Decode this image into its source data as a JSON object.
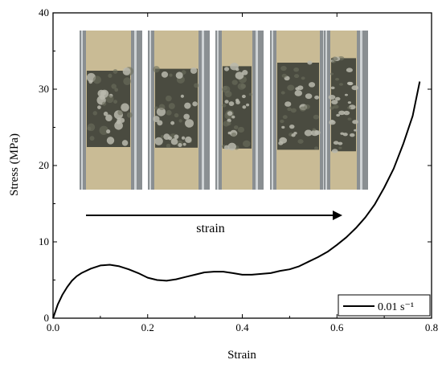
{
  "chart_data": {
    "type": "line",
    "xlabel": "Strain",
    "ylabel": "Stress (MPa)",
    "xlim": [
      0.0,
      0.8
    ],
    "ylim": [
      0,
      40
    ],
    "xticks": [
      "0.0",
      "0.2",
      "0.4",
      "0.6",
      "0.8"
    ],
    "yticks": [
      "0",
      "10",
      "20",
      "30",
      "40"
    ],
    "grid": false,
    "legend_position": "bottom-right",
    "series": [
      {
        "name": "0.01 s⁻¹",
        "color": "#000000",
        "points": [
          [
            0.0,
            0.0
          ],
          [
            0.01,
            1.8
          ],
          [
            0.02,
            3.1
          ],
          [
            0.03,
            4.1
          ],
          [
            0.04,
            4.9
          ],
          [
            0.05,
            5.5
          ],
          [
            0.06,
            5.9
          ],
          [
            0.08,
            6.5
          ],
          [
            0.1,
            6.9
          ],
          [
            0.12,
            7.0
          ],
          [
            0.14,
            6.8
          ],
          [
            0.16,
            6.4
          ],
          [
            0.18,
            5.9
          ],
          [
            0.2,
            5.3
          ],
          [
            0.22,
            5.0
          ],
          [
            0.24,
            4.9
          ],
          [
            0.26,
            5.1
          ],
          [
            0.28,
            5.4
          ],
          [
            0.3,
            5.7
          ],
          [
            0.32,
            6.0
          ],
          [
            0.34,
            6.1
          ],
          [
            0.36,
            6.1
          ],
          [
            0.38,
            5.9
          ],
          [
            0.4,
            5.7
          ],
          [
            0.42,
            5.7
          ],
          [
            0.44,
            5.8
          ],
          [
            0.46,
            5.9
          ],
          [
            0.48,
            6.2
          ],
          [
            0.5,
            6.4
          ],
          [
            0.52,
            6.8
          ],
          [
            0.54,
            7.4
          ],
          [
            0.56,
            8.0
          ],
          [
            0.58,
            8.7
          ],
          [
            0.6,
            9.6
          ],
          [
            0.62,
            10.6
          ],
          [
            0.64,
            11.8
          ],
          [
            0.66,
            13.2
          ],
          [
            0.68,
            14.9
          ],
          [
            0.7,
            17.1
          ],
          [
            0.72,
            19.6
          ],
          [
            0.74,
            22.8
          ],
          [
            0.76,
            26.5
          ],
          [
            0.775,
            31.0
          ]
        ]
      }
    ],
    "annotations": [
      {
        "text": "strain",
        "arrow": "right"
      }
    ],
    "inset_images": {
      "count": 5,
      "description_colors": {
        "background": "#c9bb95",
        "rail": "#8a8f92",
        "rail_highlight": "#cfd3d5",
        "specimen_dark": "#4a4b40",
        "specimen_light": "#b9b9ad"
      },
      "compression_levels": [
        0.0,
        0.12,
        0.28,
        0.5,
        0.78
      ]
    }
  }
}
